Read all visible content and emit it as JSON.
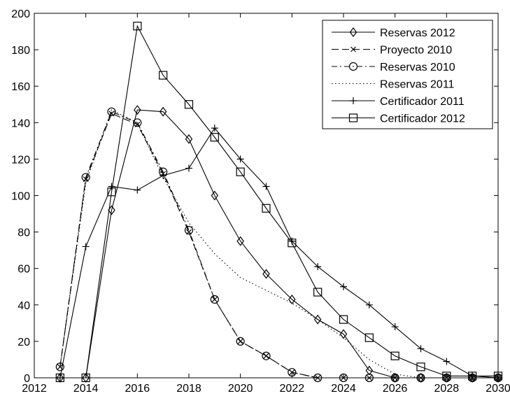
{
  "chart_data": {
    "type": "line",
    "title": "",
    "xlabel": "",
    "ylabel": "",
    "xlim": [
      2012,
      2030
    ],
    "ylim": [
      0,
      200
    ],
    "xticks": [
      "2012",
      "2014",
      "2016",
      "2018",
      "2020",
      "2022",
      "2024",
      "2026",
      "2028",
      "2030"
    ],
    "yticks": [
      "0",
      "20",
      "40",
      "60",
      "80",
      "100",
      "120",
      "140",
      "160",
      "180",
      "200"
    ],
    "grid": false,
    "legend_position": "top-right",
    "series": [
      {
        "name": "Reservas 2012",
        "line": "solid",
        "marker": "diamond",
        "x": [
          2013,
          2014,
          2015,
          2016,
          2017,
          2018,
          2019,
          2020,
          2021,
          2022,
          2023,
          2024,
          2025,
          2026,
          2027,
          2028,
          2029,
          2030
        ],
        "y": [
          0,
          0,
          92,
          147,
          146,
          131,
          100,
          75,
          57,
          43,
          32,
          24,
          4,
          0,
          0,
          0,
          0,
          0
        ]
      },
      {
        "name": "Proyecto 2010",
        "line": "dashed",
        "marker": "x",
        "x": [
          2013,
          2014,
          2015,
          2016,
          2017,
          2018,
          2019,
          2020,
          2021,
          2022,
          2023,
          2024,
          2025,
          2026,
          2027,
          2028,
          2029,
          2030
        ],
        "y": [
          6,
          109,
          145,
          139,
          112,
          80,
          43,
          20,
          12,
          3,
          0,
          0,
          0,
          0,
          0,
          0,
          0,
          0
        ]
      },
      {
        "name": "Reservas 2010",
        "line": "dashdot",
        "marker": "circle",
        "x": [
          2013,
          2014,
          2015,
          2016,
          2017,
          2018,
          2019,
          2020,
          2021,
          2022,
          2023,
          2024,
          2025,
          2026,
          2027,
          2028,
          2029,
          2030
        ],
        "y": [
          6,
          110,
          146,
          140,
          113,
          81,
          43,
          20,
          12,
          3,
          0,
          0,
          0,
          0,
          0,
          0,
          0,
          0
        ]
      },
      {
        "name": "Reservas 2011",
        "line": "dotted",
        "marker": "none",
        "x": [
          2013,
          2014,
          2015,
          2016,
          2017,
          2018,
          2019,
          2020,
          2021,
          2022,
          2023,
          2024,
          2025,
          2026,
          2027,
          2028,
          2029,
          2030
        ],
        "y": [
          6,
          107,
          147,
          140,
          110,
          85,
          68,
          55,
          48,
          41,
          32,
          22,
          10,
          2,
          0,
          0,
          0,
          0
        ]
      },
      {
        "name": "Certificador 2011",
        "line": "solid",
        "marker": "plus",
        "x": [
          2013,
          2014,
          2015,
          2016,
          2017,
          2018,
          2019,
          2020,
          2021,
          2022,
          2023,
          2024,
          2025,
          2026,
          2027,
          2028,
          2029,
          2030
        ],
        "y": [
          0,
          72,
          105,
          103,
          111,
          115,
          137,
          120,
          105,
          75,
          61,
          50,
          40,
          28,
          16,
          9,
          1,
          0
        ]
      },
      {
        "name": "Certificador 2012",
        "line": "solid",
        "marker": "square",
        "x": [
          2013,
          2014,
          2015,
          2016,
          2017,
          2018,
          2019,
          2020,
          2021,
          2022,
          2023,
          2024,
          2025,
          2026,
          2027,
          2028,
          2029,
          2030
        ],
        "y": [
          0,
          0,
          102,
          193,
          166,
          150,
          132,
          113,
          93,
          74,
          47,
          32,
          22,
          12,
          6,
          1,
          1,
          1
        ]
      }
    ]
  }
}
